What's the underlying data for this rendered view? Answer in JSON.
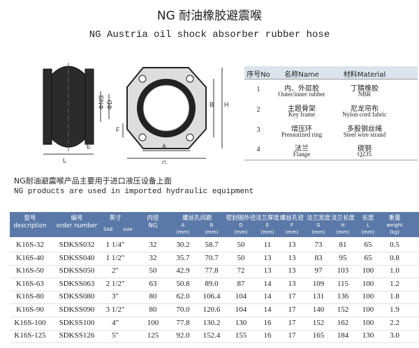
{
  "title": "NG 耐油橡胶避震喉",
  "subtitle": "NG Austria oil shock absorber rubber hose",
  "drawing_labels": {
    "ng": "ΦNG",
    "d": "ΦD",
    "e": "E",
    "l": "L",
    "f": "F",
    "a": "A",
    "g": "G",
    "b": "B",
    "h": "H"
  },
  "materials": {
    "header": [
      "序号No",
      "名称Name",
      "材料Material"
    ],
    "rows": [
      [
        "1",
        "内、外层胶",
        "Outer/inner rubber",
        "丁腈橡胶",
        "NBR"
      ],
      [
        "2",
        "主题骨架",
        "Key frame",
        "尼龙帘布",
        "Nylon cord fabric"
      ],
      [
        "3",
        "增压环",
        "Pressurized ring",
        "多股钢丝绳",
        "Steel wire strand"
      ],
      [
        "4",
        "法兰",
        "Flange",
        "碳钢",
        "Q235"
      ]
    ]
  },
  "notes": [
    "NG耐油避震喉产品主要用于进口液压设备上面",
    "NG products are used in imported hydraulic equipment"
  ],
  "table": {
    "header_top": [
      "型号",
      "编号",
      "英寸",
      "内径",
      "螺丝孔间距",
      "密封圈外径",
      "法兰厚度",
      "螺丝孔径",
      "法兰宽度",
      "法兰长度",
      "长度",
      "重量"
    ],
    "header_sub": [
      [
        "description"
      ],
      [
        "order number"
      ],
      [
        "SAE",
        "size"
      ],
      [
        "NG"
      ],
      [
        "A",
        "(mm)"
      ],
      [
        "B",
        "(mm)"
      ],
      [
        "D",
        "(mm)"
      ],
      [
        "E",
        "(mm)"
      ],
      [
        "F",
        "(mm)"
      ],
      [
        "G",
        "(mm)"
      ],
      [
        "H",
        "(mm)"
      ],
      [
        "L",
        "(mm)"
      ],
      [
        "weight",
        "(kg)"
      ]
    ],
    "rows": [
      [
        "K16S-32",
        "SDKSS032",
        "1 1/4\"",
        "32",
        "30.2",
        "58.7",
        "50",
        "11",
        "13",
        "73",
        "81",
        "65",
        "0.5"
      ],
      [
        "K16S-40",
        "SDKSS040",
        "1 1/2\"",
        "32",
        "35.7",
        "70.7",
        "50",
        "13",
        "13",
        "83",
        "95",
        "65",
        "0.8"
      ],
      [
        "K16S-50",
        "SDKSS050",
        "2\"",
        "50",
        "42.9",
        "77.8",
        "72",
        "13",
        "13",
        "97",
        "103",
        "100",
        "1.0"
      ],
      [
        "K16S-63",
        "SDKSS063",
        "2 1/2\"",
        "63",
        "50.8",
        "89.0",
        "87",
        "14",
        "13",
        "109",
        "115",
        "100",
        "1.2"
      ],
      [
        "K16S-80",
        "SDKSS080",
        "3\"",
        "80",
        "62.0",
        "106.4",
        "104",
        "14",
        "17",
        "131",
        "136",
        "100",
        "1.8"
      ],
      [
        "K16S-90",
        "SDKSS090",
        "3 1/2\"",
        "80",
        "70.0",
        "120.6",
        "104",
        "14",
        "17",
        "140",
        "152",
        "100",
        "1.9"
      ],
      [
        "K16S-100",
        "SDKSS100",
        "4\"",
        "100",
        "77.8",
        "130.2",
        "130",
        "16",
        "17",
        "152",
        "162",
        "100",
        "2.2"
      ],
      [
        "K16S-125",
        "SDKSS126",
        "5\"",
        "125",
        "92.0",
        "152.4",
        "155",
        "16",
        "17",
        "165",
        "184",
        "130",
        "3.0"
      ]
    ]
  }
}
